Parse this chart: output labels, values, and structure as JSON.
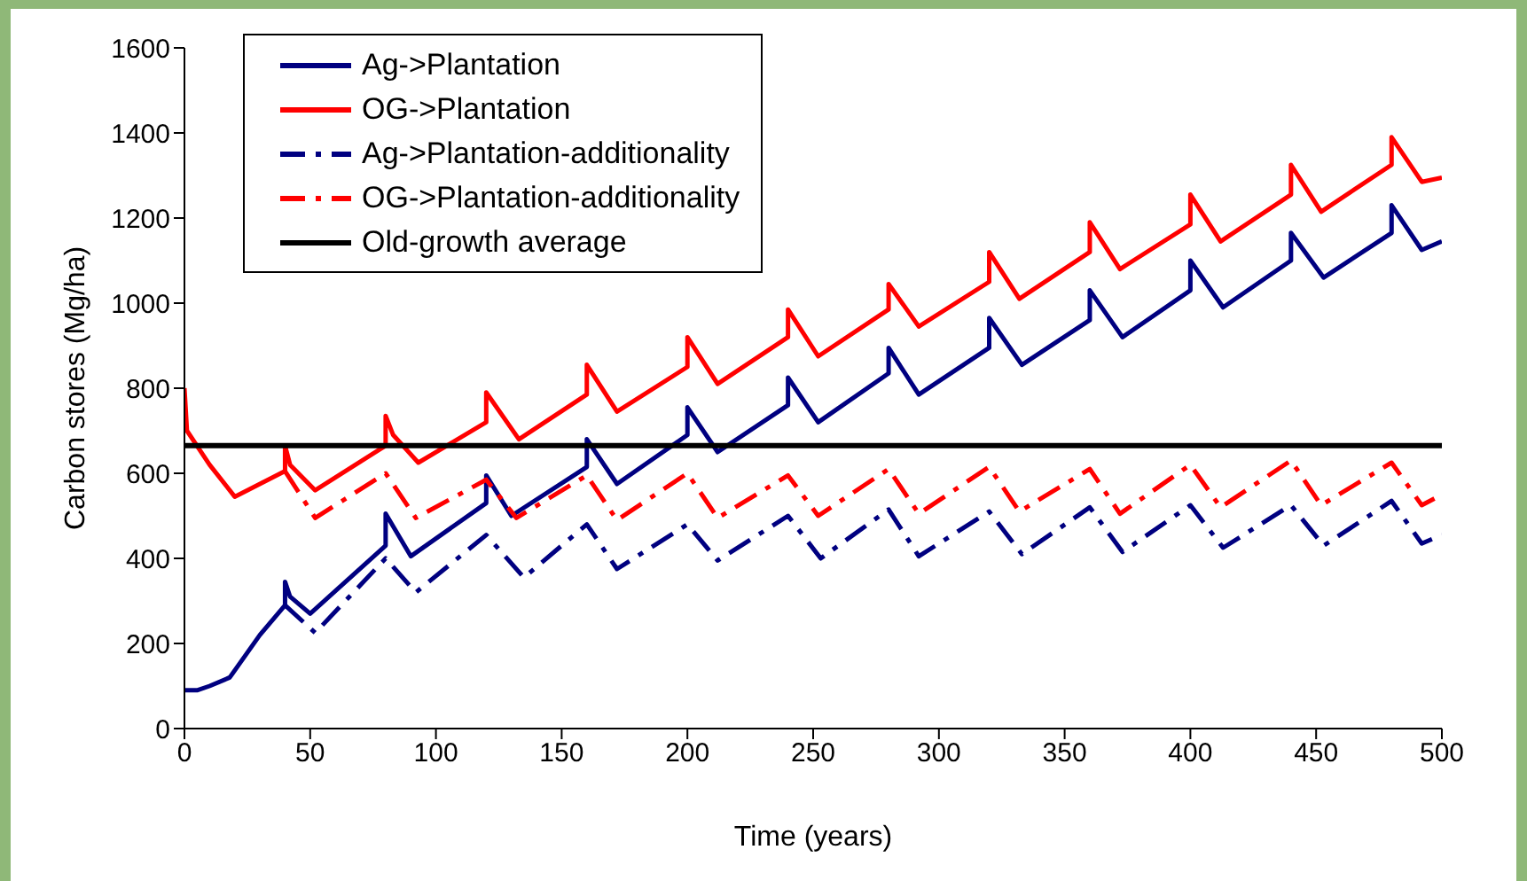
{
  "chart_data": {
    "type": "line",
    "xlabel": "Time (years)",
    "ylabel": "Carbon stores (Mg/ha)",
    "xlim": [
      0,
      500
    ],
    "ylim": [
      0,
      1600
    ],
    "xticks": [
      0,
      50,
      100,
      150,
      200,
      250,
      300,
      350,
      400,
      450,
      500
    ],
    "yticks": [
      0,
      200,
      400,
      600,
      800,
      1000,
      1200,
      1400,
      1600
    ],
    "grid": false,
    "legend": "top left",
    "marker": "none",
    "series": [
      {
        "name": "Ag->Plantation",
        "color": "#000080",
        "line_style": "solid",
        "x": [
          0,
          5,
          10,
          18,
          30,
          40,
          40,
          42,
          50,
          80,
          80,
          90,
          120,
          120,
          130,
          160,
          160,
          172,
          200,
          200,
          212,
          240,
          240,
          252,
          280,
          280,
          292,
          320,
          320,
          333,
          360,
          360,
          373,
          400,
          400,
          413,
          440,
          440,
          453,
          480,
          480,
          492,
          500
        ],
        "values": [
          90,
          90,
          100,
          120,
          220,
          290,
          345,
          310,
          270,
          430,
          505,
          405,
          530,
          595,
          500,
          615,
          680,
          575,
          690,
          755,
          650,
          760,
          825,
          720,
          835,
          895,
          785,
          895,
          965,
          855,
          960,
          1030,
          920,
          1030,
          1100,
          990,
          1100,
          1165,
          1060,
          1165,
          1230,
          1125,
          1145
        ]
      },
      {
        "name": "OG->Plantation",
        "color": "#ff0000",
        "line_style": "solid",
        "x": [
          0,
          1,
          10,
          20,
          40,
          40,
          42,
          52,
          80,
          80,
          83,
          93,
          120,
          120,
          133,
          160,
          160,
          172,
          200,
          200,
          212,
          240,
          240,
          252,
          280,
          280,
          292,
          320,
          320,
          332,
          360,
          360,
          372,
          400,
          400,
          412,
          440,
          440,
          452,
          480,
          480,
          492,
          500
        ],
        "values": [
          800,
          700,
          620,
          545,
          605,
          665,
          620,
          560,
          665,
          735,
          690,
          625,
          720,
          790,
          680,
          785,
          855,
          745,
          850,
          920,
          810,
          920,
          985,
          875,
          985,
          1045,
          945,
          1050,
          1120,
          1010,
          1120,
          1190,
          1080,
          1185,
          1255,
          1145,
          1255,
          1325,
          1215,
          1325,
          1390,
          1285,
          1295
        ]
      },
      {
        "name": "Ag->Plantation-additionality",
        "color": "#000080",
        "line_style": "dashed",
        "x": [
          40,
          52,
          80,
          92,
          120,
          135,
          160,
          172,
          200,
          212,
          240,
          253,
          280,
          292,
          320,
          333,
          360,
          373,
          400,
          413,
          440,
          453,
          480,
          492,
          500
        ],
        "values": [
          290,
          225,
          400,
          320,
          455,
          355,
          480,
          375,
          480,
          395,
          500,
          400,
          515,
          405,
          510,
          410,
          520,
          415,
          525,
          425,
          525,
          430,
          535,
          435,
          455
        ]
      },
      {
        "name": "OG->Plantation-additionality",
        "color": "#ff0000",
        "line_style": "dashed",
        "x": [
          40,
          52,
          80,
          92,
          120,
          132,
          160,
          172,
          200,
          212,
          240,
          252,
          280,
          292,
          320,
          332,
          360,
          372,
          400,
          412,
          440,
          452,
          480,
          492,
          500
        ],
        "values": [
          605,
          495,
          600,
          495,
          585,
          495,
          595,
          490,
          600,
          495,
          595,
          500,
          610,
          505,
          615,
          510,
          610,
          505,
          620,
          520,
          630,
          525,
          625,
          525,
          550
        ]
      },
      {
        "name": "Old-growth average",
        "color": "#000000",
        "line_style": "solid",
        "x": [
          0,
          500
        ],
        "values": [
          665,
          665
        ]
      }
    ]
  }
}
